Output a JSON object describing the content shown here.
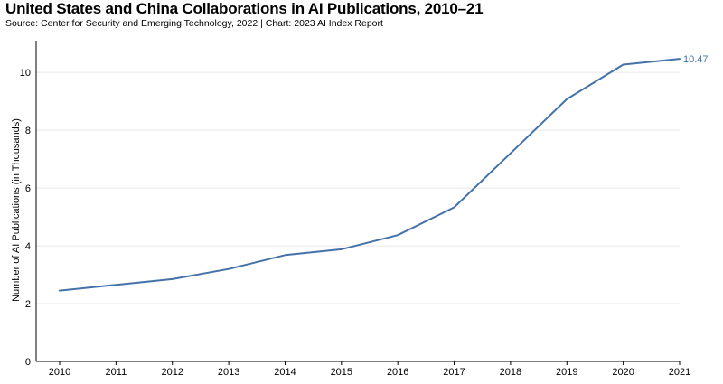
{
  "chart_data": {
    "type": "line",
    "title": "United States and China Collaborations in AI Publications, 2010–21",
    "subtitle": "Source: Center for Security and Emerging Technology, 2022 | Chart: 2023 AI Index Report",
    "xlabel": "",
    "ylabel": "Number of AI Publications (in Thousands)",
    "x": [
      "2010",
      "2011",
      "2012",
      "2013",
      "2014",
      "2015",
      "2016",
      "2017",
      "2018",
      "2019",
      "2020",
      "2021"
    ],
    "y_ticks": [
      "0",
      "2",
      "4",
      "6",
      "8",
      "10"
    ],
    "ylim": [
      0,
      11.1
    ],
    "grid": true,
    "series": [
      {
        "values": [
          2.45,
          2.65,
          2.85,
          3.2,
          3.68,
          3.88,
          4.37,
          5.33,
          7.2,
          9.08,
          10.27,
          10.47
        ],
        "color": "#4472a8",
        "end_label": "10.47"
      }
    ]
  }
}
